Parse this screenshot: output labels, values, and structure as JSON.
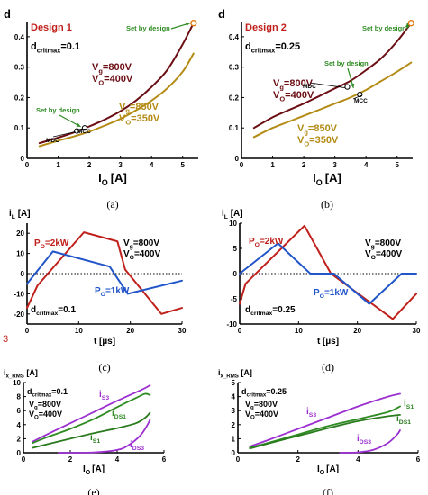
{
  "colors": {
    "maroon": "#6b0f14",
    "olive": "#b38b15",
    "red": "#c0201b",
    "blue": "#2255c8",
    "purple": "#9b2fd0",
    "green": "#2e8b22",
    "dark_green": "#2a7a1e",
    "axis": "#000000"
  },
  "stray_mark": "3",
  "chart_data": [
    {
      "id": "a",
      "type": "line",
      "caption": "(a)",
      "ylabel": "d",
      "xlabel_main": "I",
      "xlabel_sub": "O",
      "xlabel_unit": "[A]",
      "xlim": [
        0,
        5.5
      ],
      "ylim": [
        0,
        0.45
      ],
      "xticks": [
        0,
        1,
        2,
        3,
        4,
        5
      ],
      "yticks": [
        0,
        0.1,
        0.2,
        0.3,
        0.4
      ],
      "ytick_labels": [
        "0",
        "0.1",
        "0.2",
        "0.3",
        "0.4"
      ],
      "design": "Design 1",
      "dcrit_main": "d",
      "dcrit_sub": "critmax",
      "dcrit_val": "=0.1",
      "set_by_design_top": "Set by design",
      "set_by_design_low": "Set by design",
      "mdc": "MDC",
      "mcc": "MCC",
      "series": [
        {
          "name": "V",
          "label_lines": [
            [
              "V",
              "g",
              "=800V"
            ],
            [
              "V",
              "O",
              "=400V"
            ]
          ],
          "color": "#6b0f14",
          "x": [
            0.4,
            1,
            1.5,
            2,
            2.5,
            3,
            3.5,
            4,
            4.5,
            5,
            5.35
          ],
          "y": [
            0.05,
            0.068,
            0.085,
            0.105,
            0.128,
            0.155,
            0.19,
            0.235,
            0.29,
            0.375,
            0.445
          ]
        },
        {
          "name": "V",
          "label_lines": [
            [
              "V",
              "g",
              "=850V"
            ],
            [
              "V",
              "O",
              "=350V"
            ]
          ],
          "color": "#b38b15",
          "x": [
            0.4,
            1,
            1.5,
            2,
            2.5,
            3,
            3.5,
            4,
            4.5,
            5,
            5.35
          ],
          "y": [
            0.04,
            0.058,
            0.072,
            0.088,
            0.108,
            0.13,
            0.158,
            0.19,
            0.23,
            0.285,
            0.345
          ]
        }
      ],
      "mdc_point": [
        1.6,
        0.09
      ],
      "mcc_point": [
        1.85,
        0.1
      ],
      "set_point": [
        5.35,
        0.445
      ]
    },
    {
      "id": "b",
      "type": "line",
      "caption": "(b)",
      "ylabel": "d",
      "xlabel_main": "I",
      "xlabel_sub": "O",
      "xlabel_unit": "[A]",
      "xlim": [
        0,
        5.5
      ],
      "ylim": [
        0,
        0.45
      ],
      "xticks": [
        0,
        1,
        2,
        3,
        4,
        5
      ],
      "yticks": [
        0,
        0.1,
        0.2,
        0.3,
        0.4
      ],
      "ytick_labels": [
        "0",
        "0.1",
        "0.2",
        "0.3",
        "0.4"
      ],
      "design": "Design 2",
      "dcrit_main": "d",
      "dcrit_sub": "critmax",
      "dcrit_val": "=0.25",
      "set_by_design_top": "Set by design",
      "set_by_design_low": "Set by design",
      "mdc": "MDC",
      "mcc": "MCC",
      "series": [
        {
          "name": "V",
          "label_lines": [
            [
              "V",
              "g",
              "=800V"
            ],
            [
              "V",
              "O",
              "=400V"
            ]
          ],
          "color": "#6b0f14",
          "x": [
            0.4,
            1,
            1.5,
            2,
            2.5,
            3,
            3.5,
            4,
            4.5,
            5,
            5.45
          ],
          "y": [
            0.1,
            0.135,
            0.158,
            0.18,
            0.205,
            0.23,
            0.255,
            0.29,
            0.33,
            0.385,
            0.445
          ]
        },
        {
          "name": "V",
          "label_lines": [
            [
              "V",
              "g",
              "=850V"
            ],
            [
              "V",
              "O",
              "=350V"
            ]
          ],
          "color": "#b38b15",
          "x": [
            0.4,
            1,
            1.5,
            2,
            2.5,
            3,
            3.5,
            4,
            4.5,
            5,
            5.45
          ],
          "y": [
            0.07,
            0.1,
            0.12,
            0.14,
            0.16,
            0.18,
            0.2,
            0.225,
            0.255,
            0.285,
            0.315
          ]
        }
      ],
      "mdc_point": [
        3.4,
        0.235
      ],
      "mcc_point": [
        3.8,
        0.21
      ],
      "set_point": [
        5.45,
        0.445
      ]
    },
    {
      "id": "c",
      "type": "line",
      "caption": "(c)",
      "ylabel_main": "i",
      "ylabel_sub": "L",
      "ylabel_unit": "[A]",
      "xlabel": "t [µs]",
      "xlim": [
        0,
        30
      ],
      "ylim": [
        -25,
        25
      ],
      "xticks": [
        0,
        10,
        20,
        30
      ],
      "yticks": [
        -20,
        -10,
        0,
        10,
        20
      ],
      "dcrit_main": "d",
      "dcrit_sub": "critmax",
      "dcrit_val": "=0.1",
      "vg_lines": [
        [
          "V",
          "g",
          "=800V"
        ],
        [
          "V",
          "O",
          "=400V"
        ]
      ],
      "series": [
        {
          "name": "P",
          "label_parts": [
            "P",
            "O",
            "=2kW"
          ],
          "color": "#c0201b",
          "x": [
            0,
            2,
            11,
            17.5,
            19,
            26,
            30
          ],
          "y": [
            -17,
            -6,
            20.5,
            16,
            2,
            -20,
            -17
          ]
        },
        {
          "name": "P",
          "label_parts": [
            "P",
            "O",
            "=1kW"
          ],
          "color": "#2255c8",
          "x": [
            0,
            5,
            16,
            19.5,
            30
          ],
          "y": [
            -5,
            11,
            3.5,
            -10,
            -3.5
          ]
        }
      ]
    },
    {
      "id": "d",
      "type": "line",
      "caption": "(d)",
      "ylabel_main": "i",
      "ylabel_sub": "L",
      "ylabel_unit": "[A]",
      "xlabel": "t [µs]",
      "xlim": [
        0,
        30
      ],
      "ylim": [
        -10,
        10
      ],
      "xticks": [
        0,
        10,
        20,
        30
      ],
      "yticks": [
        -10,
        -5,
        0,
        5,
        10
      ],
      "dcrit_main": "d",
      "dcrit_sub": "critmax",
      "dcrit_val": "=0.25",
      "vg_lines": [
        [
          "V",
          "g",
          "=800V"
        ],
        [
          "V",
          "O",
          "=400V"
        ]
      ],
      "series": [
        {
          "name": "P",
          "label_parts": [
            "P",
            "O",
            "=2kW"
          ],
          "color": "#c0201b",
          "x": [
            0,
            1,
            11,
            15.5,
            26,
            30
          ],
          "y": [
            -6,
            -2,
            9.5,
            0,
            -9,
            -4
          ]
        },
        {
          "name": "P",
          "label_parts": [
            "P",
            "O",
            "=1kW"
          ],
          "color": "#2255c8",
          "x": [
            0,
            6.5,
            12,
            16,
            22,
            27.5,
            30
          ],
          "y": [
            0,
            6,
            0,
            0,
            -6,
            0,
            0
          ]
        }
      ]
    },
    {
      "id": "e",
      "type": "line",
      "caption": "(e)",
      "ylabel_main": "i",
      "ylabel_sub": "x_RMS",
      "ylabel_unit": "[A]",
      "xlabel_main": "I",
      "xlabel_sub": "O",
      "xlabel_unit": "[A]",
      "xlim": [
        0,
        6
      ],
      "ylim": [
        0,
        10
      ],
      "xticks": [
        0,
        2,
        4,
        6
      ],
      "yticks": [
        0,
        2,
        4,
        6,
        8,
        10
      ],
      "dcrit_main": "d",
      "dcrit_sub": "critmax",
      "dcrit_val": "=0.1",
      "vg_lines": [
        [
          "V",
          "g",
          "=800V"
        ],
        [
          "V",
          "O",
          "=400V"
        ]
      ],
      "series": [
        {
          "name": "i",
          "label_parts": [
            "i",
            "S3"
          ],
          "color": "#9b2fd0",
          "x": [
            0.4,
            1,
            2,
            3,
            4,
            5,
            5.4
          ],
          "y": [
            1.6,
            2.6,
            4.2,
            5.8,
            7.4,
            8.9,
            9.6
          ]
        },
        {
          "name": "i",
          "label_parts": [
            "i",
            "DS1"
          ],
          "color": "#2e8b22",
          "x": [
            0.4,
            1,
            2,
            3,
            4,
            4.8,
            5.2,
            5.4
          ],
          "y": [
            1.4,
            2.2,
            3.4,
            4.8,
            6.5,
            7.8,
            8.4,
            8.2
          ]
        },
        {
          "name": "i",
          "label_parts": [
            "i",
            "S1"
          ],
          "color": "#2a7a1e",
          "x": [
            0.4,
            1,
            2,
            3,
            4,
            4.8,
            5.2,
            5.4
          ],
          "y": [
            0.7,
            1.2,
            2,
            2.8,
            3.5,
            4.2,
            5,
            5.7
          ]
        },
        {
          "name": "i",
          "label_parts": [
            "i",
            "DS3"
          ],
          "color": "#9b2fd0",
          "x": [
            1.5,
            3,
            4,
            4.5,
            5,
            5.3,
            5.4
          ],
          "y": [
            0,
            0.05,
            0.4,
            1.1,
            2.5,
            4,
            4.7
          ]
        }
      ]
    },
    {
      "id": "f",
      "type": "line",
      "caption": "(f)",
      "ylabel_main": "i",
      "ylabel_sub": "x_RMS",
      "ylabel_unit": "[A]",
      "xlabel_main": "I",
      "xlabel_sub": "O",
      "xlabel_unit": "[A]",
      "xlim": [
        0,
        6
      ],
      "ylim": [
        0,
        5
      ],
      "xticks": [
        0,
        2,
        4,
        6
      ],
      "yticks": [
        0,
        1,
        2,
        3,
        4,
        5
      ],
      "dcrit_main": "d",
      "dcrit_sub": "critmax",
      "dcrit_val": "=0.25",
      "vg_lines": [
        [
          "V",
          "g",
          "=800V"
        ],
        [
          "V",
          "O",
          "=400V"
        ]
      ],
      "series": [
        {
          "name": "i",
          "label_parts": [
            "i",
            "S3"
          ],
          "color": "#9b2fd0",
          "x": [
            0.4,
            1,
            2,
            3,
            4,
            5,
            5.4
          ],
          "y": [
            0.45,
            0.9,
            1.7,
            2.5,
            3.3,
            4,
            4.2
          ]
        },
        {
          "name": "i",
          "label_parts": [
            "i",
            "S1"
          ],
          "color": "#2e8b22",
          "x": [
            0.4,
            1,
            2,
            3,
            4,
            5,
            5.4
          ],
          "y": [
            0.35,
            0.7,
            1.3,
            1.9,
            2.4,
            2.9,
            3.3
          ]
        },
        {
          "name": "i",
          "label_parts": [
            "i",
            "DS1"
          ],
          "color": "#2a7a1e",
          "x": [
            0.4,
            1,
            2,
            3,
            4,
            5,
            5.4
          ],
          "y": [
            0.3,
            0.65,
            1.2,
            1.75,
            2.25,
            2.6,
            2.7
          ]
        },
        {
          "name": "i",
          "label_parts": [
            "i",
            "DS3"
          ],
          "color": "#9b2fd0",
          "x": [
            3.4,
            4,
            4.5,
            5,
            5.3,
            5.4
          ],
          "y": [
            0,
            0.03,
            0.2,
            0.7,
            1.3,
            1.6
          ]
        }
      ]
    }
  ]
}
